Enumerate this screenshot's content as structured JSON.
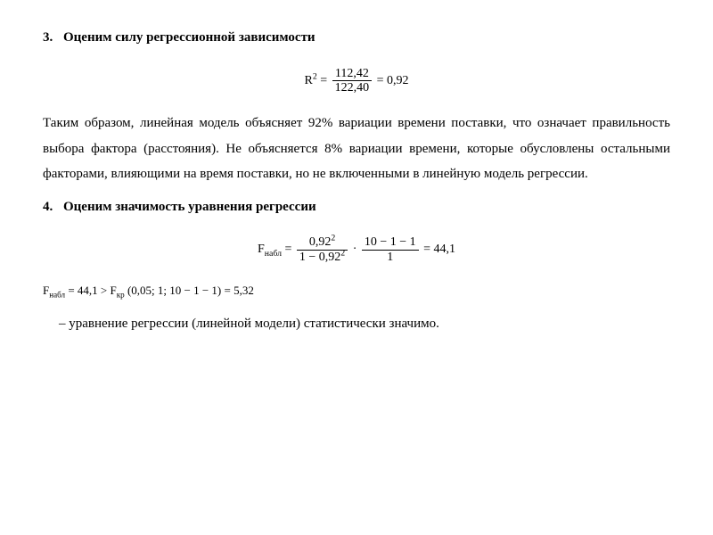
{
  "colors": {
    "background": "#ffffff",
    "text": "#000000",
    "rule": "#000000"
  },
  "typography": {
    "body_family": "Times New Roman",
    "math_family": "Cambria Math",
    "body_fontsize_pt": 15,
    "formula_fontsize_pt": 14,
    "line_height": 1.9
  },
  "section3": {
    "number": "3.",
    "title": "Оценим силу регрессионной зависимости",
    "r2_formula": {
      "lhs_base": "R",
      "lhs_exp": "2",
      "frac_num": "112,42",
      "frac_den": "122,40",
      "equals": "= 0,92"
    },
    "paragraph": "Таким образом, линейная модель объясняет 92% вариации времени поставки, что означает правильность выбора фактора (расстояния). Не объясняется 8% вариации времени, которые обусловлены остальными факторами, влияющими на время поставки, но не включенными в линейную модель регрессии."
  },
  "section4": {
    "number": "4.",
    "title": "Оценим значимость уравнения регрессии",
    "f_formula": {
      "lhs_base": "F",
      "lhs_sub": "набл",
      "eq": "=",
      "frac1_num_base": "0,92",
      "frac1_num_exp": "2",
      "frac1_den_pre": "1 − 0,92",
      "frac1_den_exp": "2",
      "dot": "·",
      "frac2_num": "10 − 1 − 1",
      "frac2_den": "1",
      "result": "= 44,1"
    },
    "f_compare": {
      "lhs_base": "F",
      "lhs_sub": "набл",
      "lhs_val": "= 44,1 >",
      "rhs_base": "F",
      "rhs_sub": "кр",
      "rhs_args": "(0,05; 1; 10 − 1 − 1) = 5,32"
    },
    "conclusion": "– уравнение регрессии (линейной модели) статистически значимо."
  }
}
